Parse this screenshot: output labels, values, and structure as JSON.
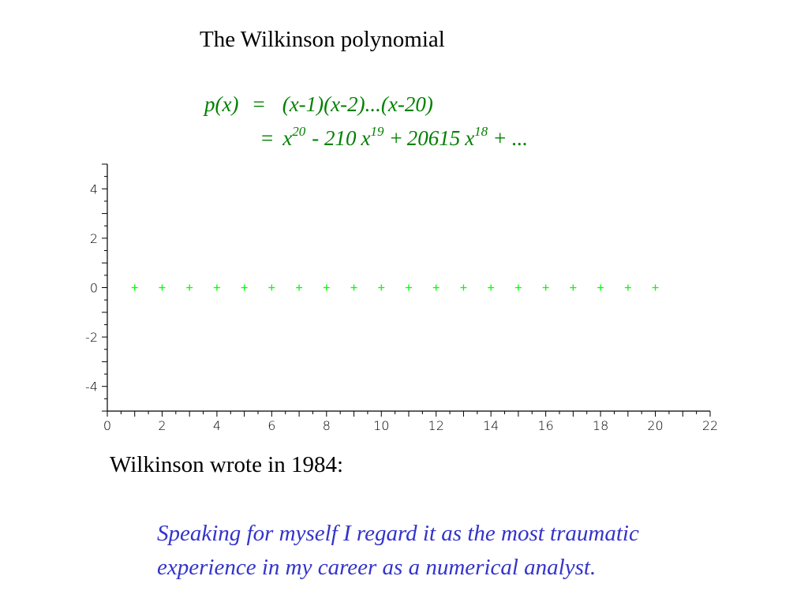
{
  "title": "The Wilkinson polynomial",
  "formula": {
    "lhs": "p(x)",
    "eq1": "=",
    "product": "(x-1)(x-2)...(x-20)",
    "eq2": "=",
    "t1_base": "x",
    "t1_exp": "20",
    "op1": "- 210",
    "t2_base": "x",
    "t2_exp": "19",
    "op2": "+",
    "coef3": "20615",
    "t3_base": "x",
    "t3_exp": "18",
    "tail": "+ ...",
    "color": "#008000"
  },
  "chart_data": {
    "type": "scatter",
    "marker": "+",
    "color": "#00ff00",
    "x": [
      1,
      2,
      3,
      4,
      5,
      6,
      7,
      8,
      9,
      10,
      11,
      12,
      13,
      14,
      15,
      16,
      17,
      18,
      19,
      20
    ],
    "y": [
      0,
      0,
      0,
      0,
      0,
      0,
      0,
      0,
      0,
      0,
      0,
      0,
      0,
      0,
      0,
      0,
      0,
      0,
      0,
      0
    ],
    "xlim": [
      0,
      22
    ],
    "ylim": [
      -5,
      5
    ],
    "x_ticks": [
      "0",
      "2",
      "4",
      "6",
      "8",
      "10",
      "12",
      "14",
      "16",
      "18",
      "20",
      "22"
    ],
    "y_ticks": [
      "4",
      "2",
      "0",
      "-2",
      "-4"
    ],
    "grid": false
  },
  "wrote": "Wilkinson wrote in 1984:",
  "quote": {
    "line1": "Speaking for myself I regard it as the most traumatic",
    "line2": "experience in my career as a numerical analyst.",
    "color": "#3333cc"
  }
}
